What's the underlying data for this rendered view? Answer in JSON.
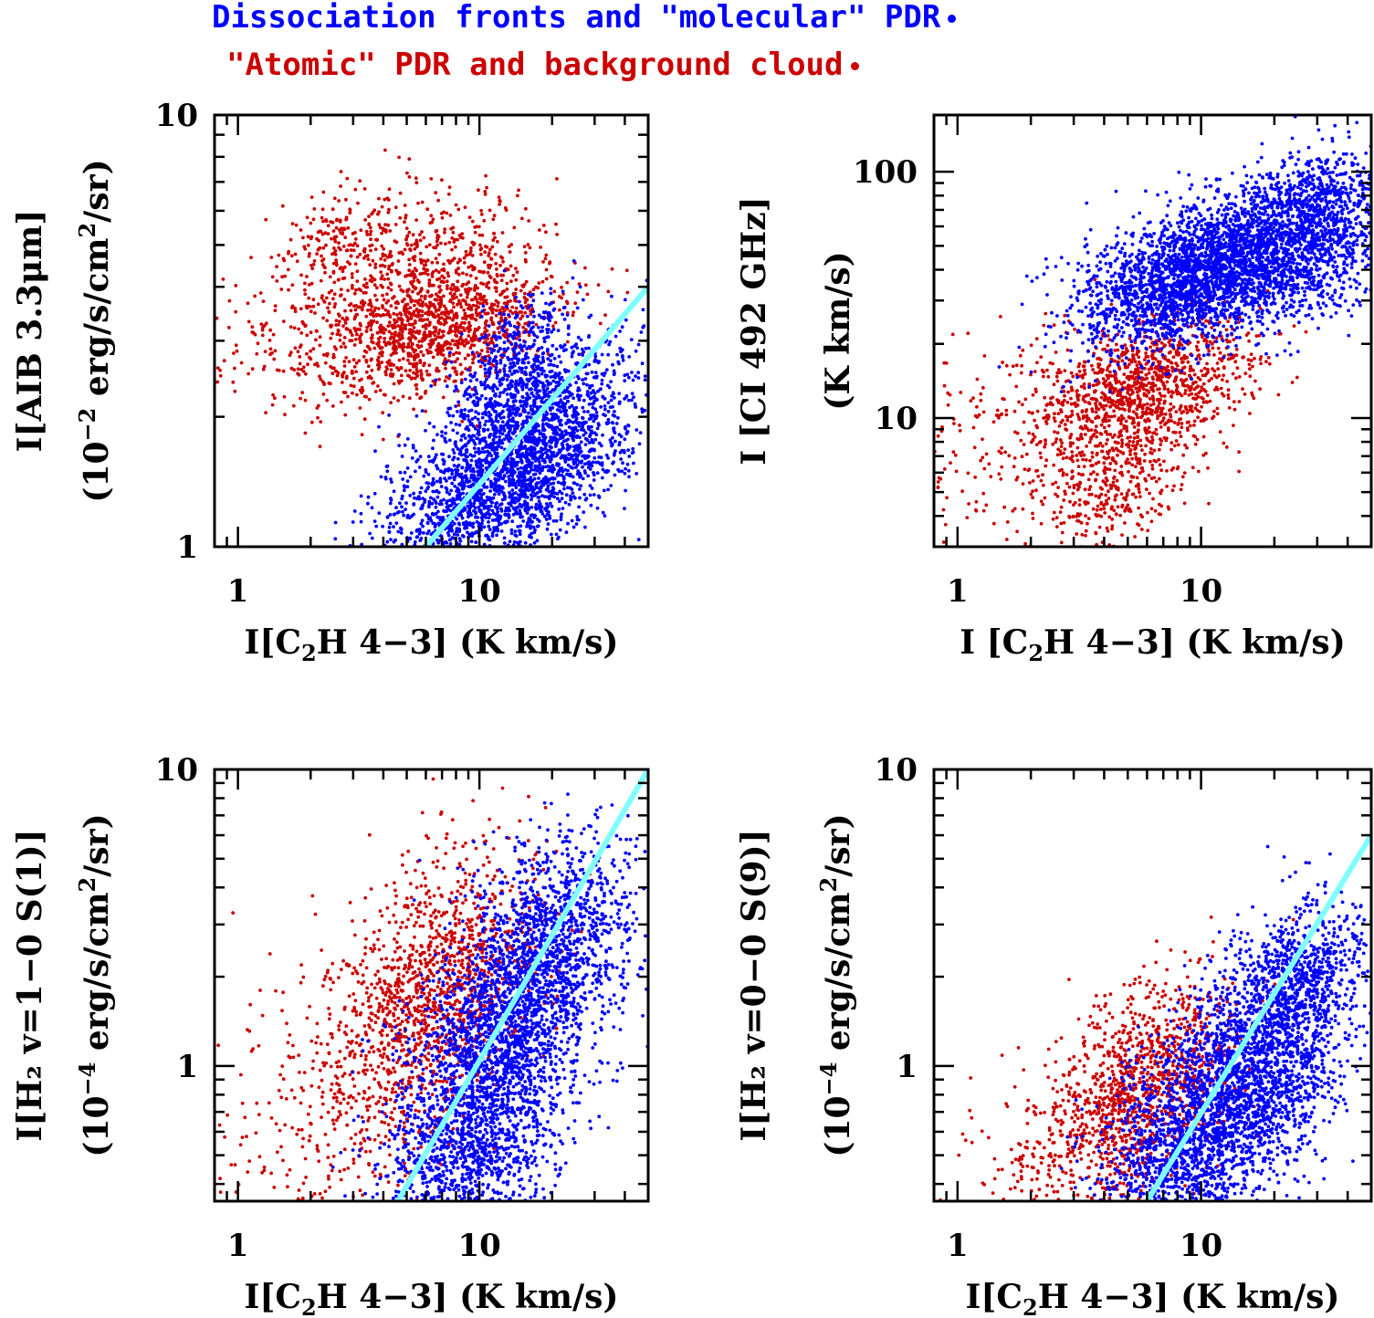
{
  "legend": {
    "molecular": "Dissociation fronts and \"molecular\" PDR",
    "atomic": "\"Atomic\" PDR and background cloud",
    "molecular_color": "#0000ff",
    "atomic_color": "#cc0000",
    "fit_color": "#7fffff"
  },
  "chart_data": [
    {
      "type": "scatter",
      "xscale": "log",
      "yscale": "log",
      "xlim": [
        0.8,
        50
      ],
      "ylim": [
        1,
        10
      ],
      "xticks": [
        "1",
        "10"
      ],
      "yticks": [
        "1",
        "10"
      ],
      "xlabel": {
        "pre": "I[C",
        "sub": "2",
        "post": "H 4−3] (K km/s)"
      },
      "ylabel": {
        "line1": "I[AIB 3.3μm]",
        "line2_pre": "(10",
        "line2_sup": "−2",
        "line2_mid": " erg/s/cm",
        "line2_sup2": "2",
        "line2_post": "/sr)"
      },
      "fit": {
        "x": [
          6,
          50
        ],
        "y": [
          1,
          4
        ]
      },
      "series": [
        {
          "color": "red",
          "clusters": [
            {
              "x": 6.5,
              "y": 3.1,
              "dx": 0.25,
              "dy": 0.07,
              "n": 900
            },
            {
              "x": 3.2,
              "y": 3.3,
              "dx": 0.35,
              "dy": 0.08,
              "n": 350
            },
            {
              "x": 4.5,
              "y": 4.9,
              "dx": 0.25,
              "dy": 0.07,
              "n": 350
            },
            {
              "x": 8.0,
              "y": 3.8,
              "dx": 0.2,
              "dy": 0.06,
              "n": 250
            },
            {
              "x": 2.3,
              "y": 5.2,
              "dx": 0.15,
              "dy": 0.05,
              "n": 100
            }
          ]
        },
        {
          "color": "blue",
          "clusters": [
            {
              "x": 19,
              "y": 1.8,
              "dx": 0.2,
              "dy": 0.1,
              "n": 1400
            },
            {
              "x": 10,
              "y": 1.3,
              "dx": 0.22,
              "dy": 0.09,
              "n": 1300
            },
            {
              "x": 14,
              "y": 2.6,
              "dx": 0.13,
              "dy": 0.08,
              "n": 500
            }
          ]
        }
      ]
    },
    {
      "type": "scatter",
      "xscale": "log",
      "yscale": "log",
      "xlim": [
        0.8,
        50
      ],
      "ylim": [
        3,
        170
      ],
      "xticks": [
        "1",
        "10"
      ],
      "yticks": [
        "10",
        "100"
      ],
      "xlabel": {
        "pre": "I [C",
        "sub": "2",
        "post": "H 4−3] (K km/s)"
      },
      "ylabel": {
        "line1": "I [CI 492 GHz]",
        "line2_pre": "(K km/s)",
        "line2_sup": "",
        "line2_mid": "",
        "line2_sup2": "",
        "line2_post": ""
      },
      "fit": null,
      "series": [
        {
          "color": "red",
          "clusters": [
            {
              "x": 6.0,
              "y": 14,
              "dx": 0.22,
              "dy": 0.12,
              "n": 1000
            },
            {
              "x": 4.5,
              "y": 6.0,
              "dx": 0.18,
              "dy": 0.15,
              "n": 500
            },
            {
              "x": 1.8,
              "y": 9.0,
              "dx": 0.3,
              "dy": 0.25,
              "n": 250
            }
          ]
        },
        {
          "color": "blue",
          "clusters": [
            {
              "x": 17,
              "y": 45,
              "dx": 0.28,
              "dy": 0.14,
              "n": 2500
            },
            {
              "x": 8,
              "y": 35,
              "dx": 0.22,
              "dy": 0.12,
              "n": 1200
            },
            {
              "x": 30,
              "y": 80,
              "dx": 0.15,
              "dy": 0.1,
              "n": 400
            }
          ]
        }
      ]
    },
    {
      "type": "scatter",
      "xscale": "log",
      "yscale": "log",
      "xlim": [
        0.8,
        50
      ],
      "ylim": [
        0.35,
        10
      ],
      "xticks": [
        "1",
        "10"
      ],
      "yticks": [
        "1",
        "10"
      ],
      "xlabel": {
        "pre": "I[C",
        "sub": "2",
        "post": "H 4−3] (K km/s)"
      },
      "ylabel": {
        "line1": "I[H₂ v=1−0 S(1)]",
        "line2_pre": "(10",
        "line2_sup": "−4",
        "line2_mid": " erg/s/cm",
        "line2_sup2": "2",
        "line2_post": "/sr)"
      },
      "fit": {
        "x": [
          4.6,
          50
        ],
        "y": [
          0.35,
          10
        ]
      },
      "series": [
        {
          "color": "red",
          "clusters": [
            {
              "x": 6.5,
              "y": 1.9,
              "dx": 0.22,
              "dy": 0.2,
              "n": 1200
            },
            {
              "x": 3.5,
              "y": 0.7,
              "dx": 0.25,
              "dy": 0.25,
              "n": 300
            },
            {
              "x": 1.5,
              "y": 0.6,
              "dx": 0.3,
              "dy": 0.3,
              "n": 150
            }
          ]
        },
        {
          "color": "blue",
          "clusters": [
            {
              "x": 18,
              "y": 2.2,
              "dx": 0.2,
              "dy": 0.2,
              "n": 1600
            },
            {
              "x": 9,
              "y": 0.6,
              "dx": 0.2,
              "dy": 0.22,
              "n": 1600
            },
            {
              "x": 12,
              "y": 1.2,
              "dx": 0.2,
              "dy": 0.25,
              "n": 600
            }
          ]
        }
      ]
    },
    {
      "type": "scatter",
      "xscale": "log",
      "yscale": "log",
      "xlim": [
        0.8,
        50
      ],
      "ylim": [
        0.35,
        10
      ],
      "xticks": [
        "1",
        "10"
      ],
      "yticks": [
        "1",
        "10"
      ],
      "xlabel": {
        "pre": "I[C",
        "sub": "2",
        "post": "H 4−3] (K km/s)"
      },
      "ylabel": {
        "line1": "I[H₂ v=0−0 S(9)]",
        "line2_pre": "(10",
        "line2_sup": "−4",
        "line2_mid": " erg/s/cm",
        "line2_sup2": "2",
        "line2_post": "/sr)"
      },
      "fit": {
        "x": [
          6,
          50
        ],
        "y": [
          0.35,
          6
        ]
      },
      "series": [
        {
          "color": "red",
          "clusters": [
            {
              "x": 6.0,
              "y": 0.85,
              "dx": 0.2,
              "dy": 0.17,
              "n": 1100
            },
            {
              "x": 3.0,
              "y": 0.5,
              "dx": 0.25,
              "dy": 0.2,
              "n": 300
            }
          ]
        },
        {
          "color": "blue",
          "clusters": [
            {
              "x": 18,
              "y": 1.1,
              "dx": 0.2,
              "dy": 0.2,
              "n": 1800
            },
            {
              "x": 9,
              "y": 0.55,
              "dx": 0.2,
              "dy": 0.18,
              "n": 1500
            },
            {
              "x": 25,
              "y": 2.0,
              "dx": 0.12,
              "dy": 0.1,
              "n": 400
            }
          ]
        }
      ]
    }
  ]
}
